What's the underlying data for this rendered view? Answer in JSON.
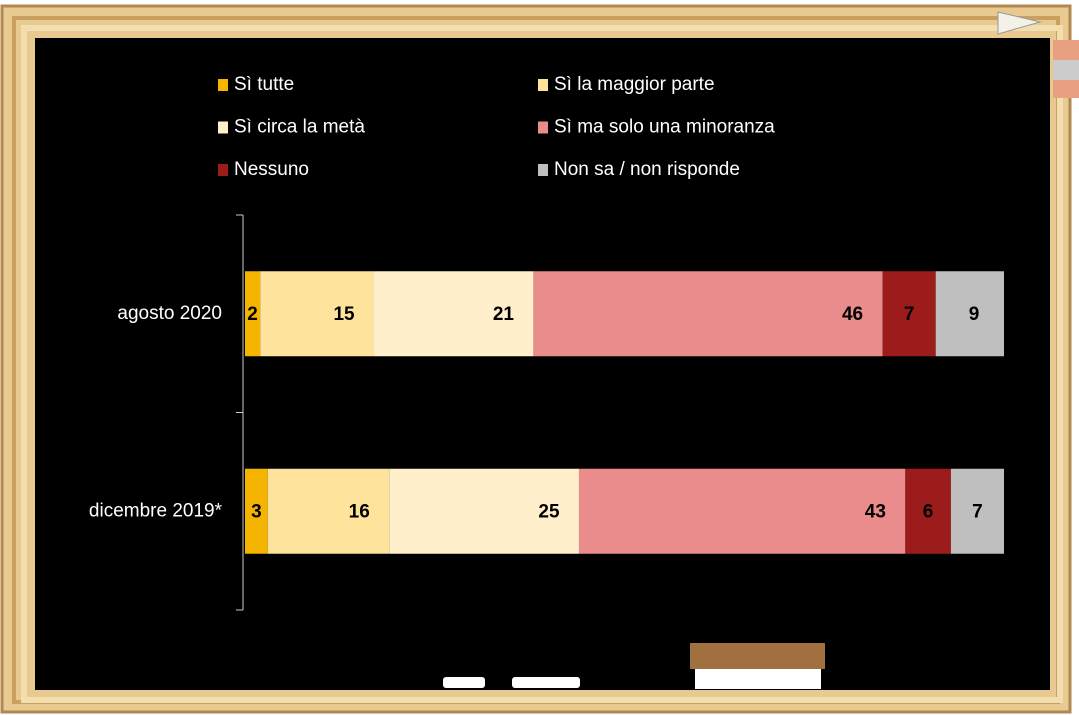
{
  "chart_data": {
    "type": "stacked-bar-horizontal",
    "categories": [
      "agosto 2020",
      "dicembre 2019*"
    ],
    "series": [
      {
        "name": "Sì tutte",
        "color": "#f5b400",
        "values": [
          2,
          3
        ]
      },
      {
        "name": "Sì la maggior parte",
        "color": "#fde39b",
        "values": [
          15,
          16
        ]
      },
      {
        "name": "Sì circa la metà",
        "color": "#fff0cb",
        "values": [
          21,
          25
        ]
      },
      {
        "name": "Sì ma solo una minoranza",
        "color": "#ea8c8c",
        "values": [
          46,
          43
        ]
      },
      {
        "name": "Nessuno",
        "color": "#9c1c1c",
        "values": [
          7,
          6
        ]
      },
      {
        "name": "Non sa / non risponde",
        "color": "#bfbfbf",
        "values": [
          9,
          7
        ]
      }
    ],
    "xlim": [
      0,
      100
    ]
  }
}
